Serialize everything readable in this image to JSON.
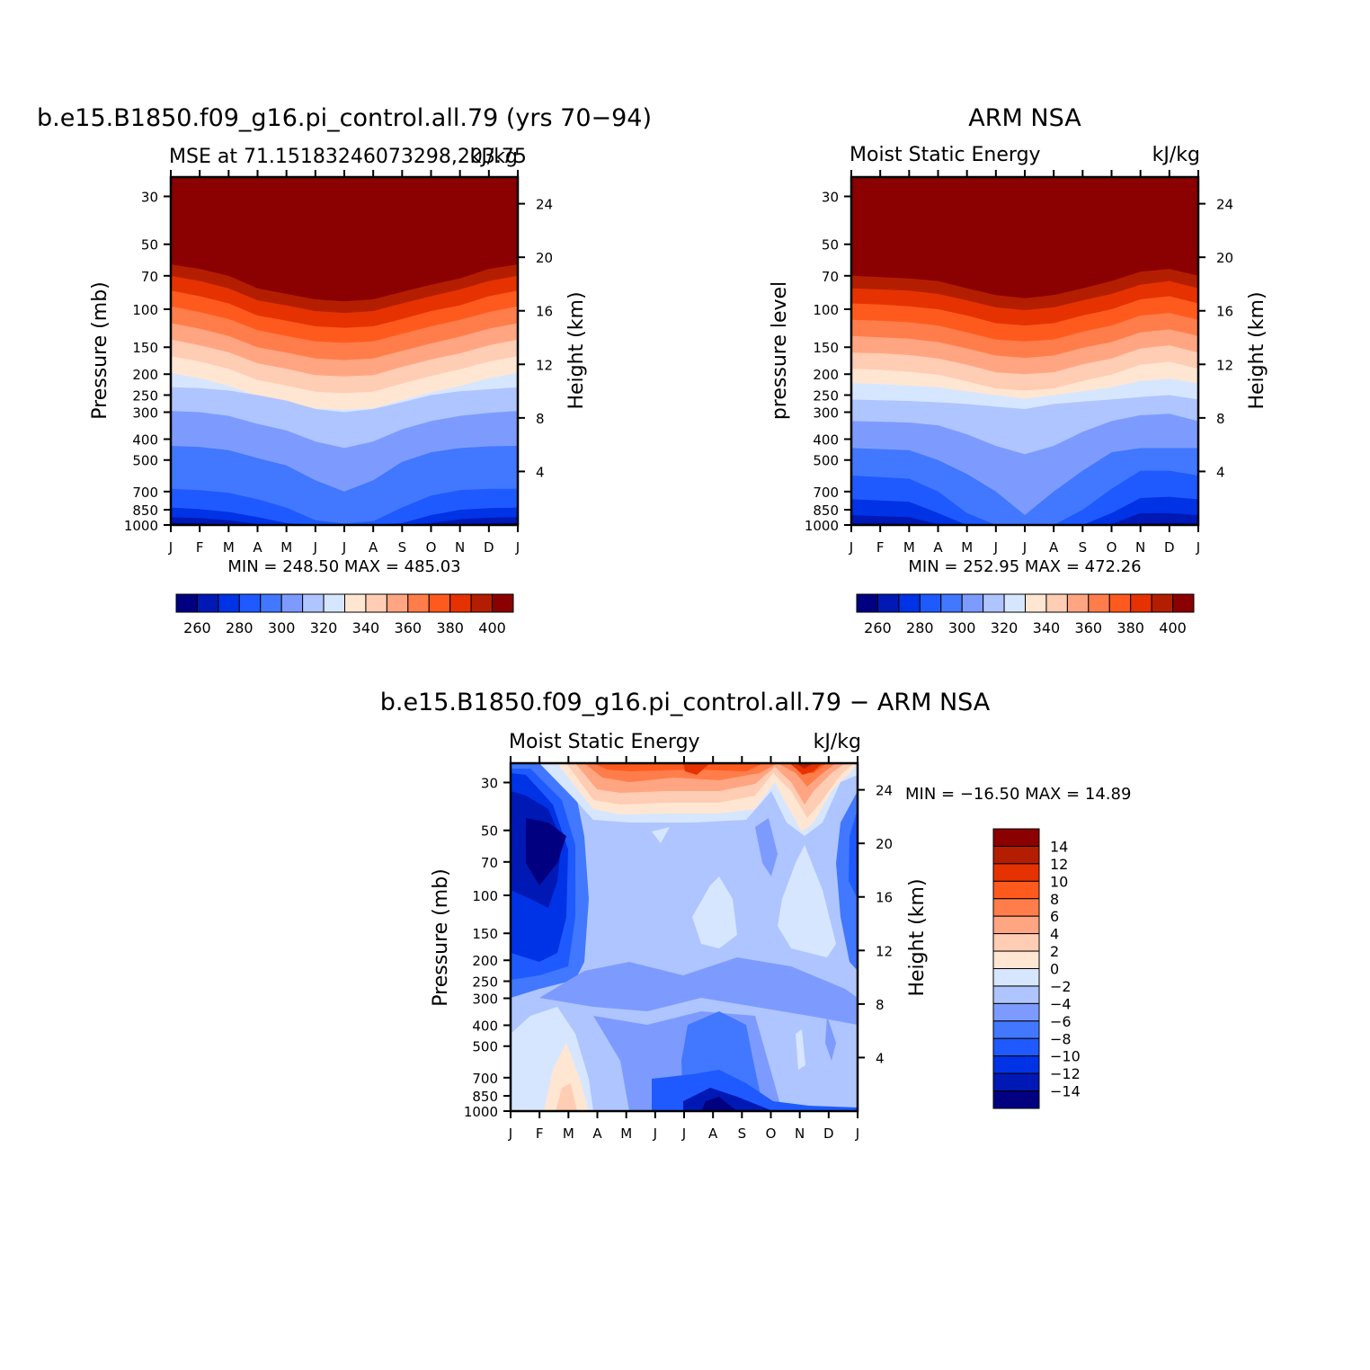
{
  "panels": {
    "model": {
      "title": "b.e15.B1850.f09_g16.pi_control.all.79 (yrs 70−94)",
      "subtitle_left": "MSE at 71.15183246073298,203.75",
      "subtitle_right": "kJ/kg",
      "ylabel": "Pressure (mb)",
      "ylabel_right": "Height (km)",
      "minmax": "MIN = 248.50 MAX = 485.03"
    },
    "obs": {
      "title": "ARM NSA",
      "subtitle_left": "Moist Static Energy",
      "subtitle_right": "kJ/kg",
      "ylabel": "pressure level",
      "ylabel_right": "Height (km)",
      "minmax": "MIN = 252.95 MAX = 472.26"
    },
    "diff": {
      "title": "b.e15.B1850.f09_g16.pi_control.all.79 − ARM NSA",
      "subtitle_left": "Moist Static Energy",
      "subtitle_right": "kJ/kg",
      "ylabel": "Pressure (mb)",
      "ylabel_right": "Height (km)",
      "minmax": "MIN = −16.50 MAX =   14.89"
    }
  },
  "chart_data": [
    {
      "type": "heatmap",
      "panel": "model",
      "x": [
        "J",
        "F",
        "M",
        "A",
        "M",
        "J",
        "J",
        "A",
        "S",
        "O",
        "N",
        "D",
        "J"
      ],
      "yticks_pressure": [
        30,
        50,
        70,
        100,
        150,
        200,
        250,
        300,
        400,
        500,
        700,
        850,
        1000
      ],
      "yticks_height_km": [
        24,
        20,
        16,
        12,
        8,
        4
      ],
      "boundary_pressures": [
        [
          62,
          65,
          70,
          80,
          85,
          90,
          92,
          90,
          83,
          77,
          72,
          65,
          62
        ],
        [
          70,
          74,
          80,
          91,
          96,
          102,
          104,
          102,
          94,
          87,
          81,
          74,
          70
        ],
        [
          82,
          87,
          94,
          107,
          113,
          120,
          122,
          120,
          111,
          102,
          96,
          87,
          82
        ],
        [
          97,
          103,
          111,
          125,
          133,
          141,
          143,
          141,
          130,
          120,
          112,
          103,
          97
        ],
        [
          116,
          123,
          133,
          150,
          159,
          169,
          172,
          169,
          156,
          144,
          134,
          123,
          116
        ],
        [
          138,
          147,
          158,
          178,
          189,
          202,
          205,
          202,
          185,
          171,
          160,
          147,
          138
        ],
        [
          165,
          175,
          189,
          213,
          226,
          241,
          245,
          241,
          221,
          204,
          190,
          175,
          165
        ],
        [
          197,
          209,
          226,
          253,
          270,
          288,
          292,
          288,
          264,
          243,
          227,
          209,
          197
        ],
        [
          230,
          232,
          238,
          250,
          265,
          290,
          300,
          290,
          270,
          250,
          240,
          235,
          230
        ],
        [
          296,
          300,
          312,
          340,
          365,
          410,
          440,
          410,
          360,
          330,
          312,
          302,
          296
        ],
        [
          430,
          435,
          450,
          490,
          530,
          620,
          700,
          620,
          510,
          460,
          440,
          432,
          430
        ],
        [
          680,
          690,
          710,
          760,
          830,
          950,
          985,
          960,
          830,
          730,
          690,
          680,
          680
        ],
        [
          830,
          845,
          870,
          920,
          980,
          1000,
          1000,
          1000,
          980,
          900,
          850,
          835,
          830
        ],
        [
          920,
          930,
          950,
          990,
          1000,
          1000,
          1000,
          1000,
          1000,
          980,
          940,
          925,
          920
        ],
        [
          980,
          985,
          995,
          1000,
          1000,
          1000,
          1000,
          1000,
          1000,
          1000,
          990,
          985,
          980
        ]
      ]
    },
    {
      "type": "heatmap",
      "panel": "obs",
      "x": [
        "J",
        "F",
        "M",
        "A",
        "M",
        "J",
        "J",
        "A",
        "S",
        "O",
        "N",
        "D",
        "J"
      ],
      "yticks_pressure": [
        30,
        50,
        70,
        100,
        150,
        200,
        250,
        300,
        400,
        500,
        700,
        850,
        1000
      ],
      "yticks_height_km": [
        24,
        20,
        16,
        12,
        8,
        4
      ],
      "boundary_pressures": [
        [
          70,
          71,
          72,
          74,
          80,
          86,
          89,
          86,
          80,
          74,
          67,
          65,
          70
        ],
        [
          80,
          81,
          82,
          85,
          91,
          98,
          101,
          98,
          91,
          85,
          77,
          74,
          80
        ],
        [
          94,
          95,
          97,
          100,
          107,
          116,
          119,
          116,
          107,
          100,
          90,
          87,
          94
        ],
        [
          112,
          113,
          115,
          119,
          128,
          138,
          141,
          138,
          127,
          119,
          107,
          104,
          112
        ],
        [
          133,
          135,
          137,
          142,
          152,
          164,
          168,
          164,
          151,
          142,
          128,
          124,
          133
        ],
        [
          159,
          160,
          163,
          169,
          181,
          196,
          200,
          196,
          180,
          169,
          152,
          147,
          159
        ],
        [
          189,
          191,
          195,
          201,
          216,
          233,
          238,
          233,
          215,
          201,
          181,
          175,
          189
        ],
        [
          220,
          222,
          226,
          230,
          240,
          250,
          260,
          250,
          240,
          230,
          215,
          210,
          220
        ],
        [
          262,
          264,
          266,
          270,
          275,
          283,
          290,
          275,
          268,
          262,
          255,
          250,
          262
        ],
        [
          330,
          332,
          335,
          345,
          380,
          430,
          470,
          430,
          370,
          330,
          310,
          305,
          330
        ],
        [
          440,
          445,
          450,
          500,
          580,
          700,
          900,
          700,
          560,
          460,
          440,
          440,
          440
        ],
        [
          590,
          600,
          610,
          700,
          880,
          1000,
          1000,
          1000,
          850,
          680,
          560,
          560,
          590
        ],
        [
          760,
          770,
          780,
          880,
          1000,
          1000,
          1000,
          1000,
          1000,
          880,
          750,
          740,
          760
        ],
        [
          900,
          910,
          920,
          990,
          1000,
          1000,
          1000,
          1000,
          1000,
          990,
          880,
          880,
          900
        ],
        [
          985,
          985,
          990,
          1000,
          1000,
          1000,
          1000,
          1000,
          1000,
          1000,
          985,
          980,
          985
        ]
      ]
    },
    {
      "type": "heatmap",
      "panel": "diff",
      "x": [
        "J",
        "F",
        "M",
        "A",
        "M",
        "J",
        "J",
        "A",
        "S",
        "O",
        "N",
        "D",
        "J"
      ],
      "yticks_pressure": [
        30,
        50,
        70,
        100,
        150,
        200,
        250,
        300,
        400,
        500,
        700,
        850,
        1000
      ],
      "yticks_height_km": [
        24,
        20,
        16,
        12,
        8,
        4
      ],
      "description": "contoured difference field (model minus observation)"
    }
  ],
  "colorbars": {
    "mse": {
      "colors": [
        "#000080",
        "#0019b4",
        "#0032e6",
        "#1e5aff",
        "#4178ff",
        "#7d9bff",
        "#afc5ff",
        "#d7e6ff",
        "#ffe6d2",
        "#ffcdb4",
        "#ffa582",
        "#ff7d4b",
        "#ff5a1e",
        "#e63200",
        "#b41e00",
        "#8b0000"
      ],
      "labels": [
        "260",
        "280",
        "300",
        "320",
        "340",
        "360",
        "380",
        "400"
      ]
    },
    "diff": {
      "colors": [
        "#000080",
        "#0019b4",
        "#0032e6",
        "#1e5aff",
        "#4178ff",
        "#7d9bff",
        "#afc5ff",
        "#d7e6ff",
        "#ffe6d2",
        "#ffcdb4",
        "#ffa582",
        "#ff7d4b",
        "#ff5a1e",
        "#e63200",
        "#b41e00",
        "#8b0000"
      ],
      "labels": [
        "14",
        "12",
        "10",
        "8",
        "6",
        "4",
        "2",
        "0",
        "−2",
        "−4",
        "−6",
        "−8",
        "−10",
        "−12",
        "−14"
      ]
    }
  }
}
